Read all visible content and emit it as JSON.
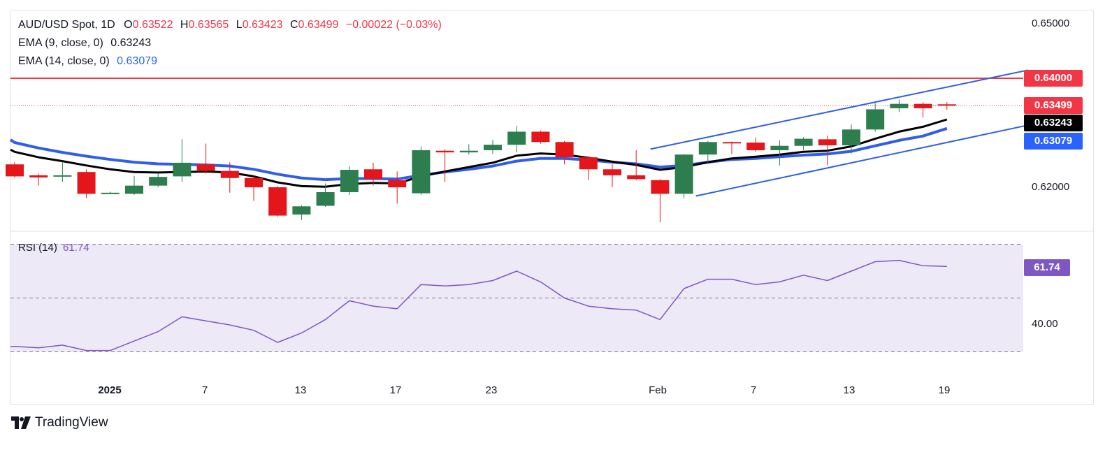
{
  "legend": {
    "symbol": "AUD/USD Spot, 1D",
    "open_label": "O",
    "open": "0.63522",
    "high_label": "H",
    "high": "0.63565",
    "low_label": "L",
    "low": "0.63423",
    "close_label": "C",
    "close": "0.63499",
    "change": "−0.00022 (−0.03%)",
    "ema9_label": "EMA (9, close, 0)",
    "ema9_value": "0.63243",
    "ema14_label": "EMA (14, close, 0)",
    "ema14_value": "0.63079"
  },
  "rsi_legend": {
    "label": "RSI (14)",
    "value": "61.74"
  },
  "price_axis": [
    "0.65000",
    "0.62000"
  ],
  "rsi_axis": [
    "40.00"
  ],
  "tags": {
    "resistance": "0.64000",
    "last_close": "0.63499",
    "ema9": "0.63243",
    "ema14": "0.63079",
    "rsi": "61.74"
  },
  "x_axis": [
    {
      "label": "2025",
      "bold": true
    },
    {
      "label": "7",
      "bold": false
    },
    {
      "label": "13",
      "bold": false
    },
    {
      "label": "17",
      "bold": false
    },
    {
      "label": "23",
      "bold": false
    },
    {
      "label": "Feb",
      "bold": false
    },
    {
      "label": "7",
      "bold": false
    },
    {
      "label": "13",
      "bold": false
    },
    {
      "label": "19",
      "bold": false
    }
  ],
  "logo": {
    "text": "TradingView"
  },
  "colors": {
    "up": "#2e7d4f",
    "down": "#e5161b",
    "ema9": "#000000",
    "ema14": "#2f5fe8",
    "channel": "#2f5fe8",
    "resistance": "#f23645",
    "rsi_line": "#7e57c2",
    "rsi_band": "#ede9f7"
  },
  "chart_data": {
    "type": "candlestick",
    "symbol": "AUD/USD",
    "timeframe": "1D",
    "ylim": [
      0.6135,
      0.6515
    ],
    "candles": [
      {
        "o": 0.6242,
        "h": 0.6246,
        "l": 0.6218,
        "c": 0.622
      },
      {
        "o": 0.6222,
        "h": 0.6225,
        "l": 0.6203,
        "c": 0.6218
      },
      {
        "o": 0.622,
        "h": 0.6247,
        "l": 0.621,
        "c": 0.6222
      },
      {
        "o": 0.6228,
        "h": 0.6233,
        "l": 0.618,
        "c": 0.6188
      },
      {
        "o": 0.619,
        "h": 0.6192,
        "l": 0.6188,
        "c": 0.619
      },
      {
        "o": 0.6188,
        "h": 0.6221,
        "l": 0.6186,
        "c": 0.6203
      },
      {
        "o": 0.6203,
        "h": 0.6225,
        "l": 0.62,
        "c": 0.6219
      },
      {
        "o": 0.622,
        "h": 0.6288,
        "l": 0.621,
        "c": 0.6245
      },
      {
        "o": 0.6242,
        "h": 0.628,
        "l": 0.6225,
        "c": 0.623
      },
      {
        "o": 0.623,
        "h": 0.6246,
        "l": 0.619,
        "c": 0.6217
      },
      {
        "o": 0.6217,
        "h": 0.6219,
        "l": 0.6175,
        "c": 0.62
      },
      {
        "o": 0.62,
        "h": 0.6202,
        "l": 0.6146,
        "c": 0.6148
      },
      {
        "o": 0.615,
        "h": 0.6167,
        "l": 0.614,
        "c": 0.6165
      },
      {
        "o": 0.6166,
        "h": 0.6207,
        "l": 0.6164,
        "c": 0.6191
      },
      {
        "o": 0.6191,
        "h": 0.6239,
        "l": 0.6186,
        "c": 0.6232
      },
      {
        "o": 0.6233,
        "h": 0.6245,
        "l": 0.6203,
        "c": 0.6215
      },
      {
        "o": 0.6213,
        "h": 0.6229,
        "l": 0.617,
        "c": 0.62
      },
      {
        "o": 0.6189,
        "h": 0.6275,
        "l": 0.6186,
        "c": 0.6268
      },
      {
        "o": 0.6267,
        "h": 0.627,
        "l": 0.621,
        "c": 0.6264
      },
      {
        "o": 0.6264,
        "h": 0.6279,
        "l": 0.626,
        "c": 0.6267
      },
      {
        "o": 0.6268,
        "h": 0.6287,
        "l": 0.6261,
        "c": 0.6278
      },
      {
        "o": 0.6278,
        "h": 0.6313,
        "l": 0.6264,
        "c": 0.6302
      },
      {
        "o": 0.6302,
        "h": 0.6304,
        "l": 0.628,
        "c": 0.6283
      },
      {
        "o": 0.6283,
        "h": 0.6285,
        "l": 0.6242,
        "c": 0.6255
      },
      {
        "o": 0.6255,
        "h": 0.6257,
        "l": 0.6213,
        "c": 0.6233
      },
      {
        "o": 0.6233,
        "h": 0.6242,
        "l": 0.62,
        "c": 0.6222
      },
      {
        "o": 0.6222,
        "h": 0.6268,
        "l": 0.6213,
        "c": 0.6215
      },
      {
        "o": 0.6213,
        "h": 0.6215,
        "l": 0.6136,
        "c": 0.6188
      },
      {
        "o": 0.6188,
        "h": 0.6261,
        "l": 0.618,
        "c": 0.626
      },
      {
        "o": 0.626,
        "h": 0.6285,
        "l": 0.6245,
        "c": 0.6283
      },
      {
        "o": 0.6283,
        "h": 0.6284,
        "l": 0.6261,
        "c": 0.6282
      },
      {
        "o": 0.6282,
        "h": 0.6291,
        "l": 0.6265,
        "c": 0.6268
      },
      {
        "o": 0.6268,
        "h": 0.6286,
        "l": 0.624,
        "c": 0.6276
      },
      {
        "o": 0.6276,
        "h": 0.6292,
        "l": 0.6268,
        "c": 0.6289
      },
      {
        "o": 0.6288,
        "h": 0.6295,
        "l": 0.624,
        "c": 0.6277
      },
      {
        "o": 0.6277,
        "h": 0.6315,
        "l": 0.6262,
        "c": 0.6306
      },
      {
        "o": 0.6306,
        "h": 0.6354,
        "l": 0.6302,
        "c": 0.6343
      },
      {
        "o": 0.6345,
        "h": 0.6361,
        "l": 0.6338,
        "c": 0.6353
      },
      {
        "o": 0.6353,
        "h": 0.6356,
        "l": 0.6328,
        "c": 0.6345
      },
      {
        "o": 0.63522,
        "h": 0.63565,
        "l": 0.63423,
        "c": 0.63499
      }
    ],
    "ema9": [
      0.6265,
      0.6255,
      0.6248,
      0.624,
      0.6233,
      0.6228,
      0.6227,
      0.6228,
      0.6229,
      0.6227,
      0.622,
      0.6209,
      0.6202,
      0.6201,
      0.6206,
      0.6208,
      0.6207,
      0.622,
      0.6229,
      0.6237,
      0.6245,
      0.6258,
      0.6262,
      0.626,
      0.6254,
      0.6247,
      0.6241,
      0.6232,
      0.6237,
      0.6246,
      0.6253,
      0.6256,
      0.626,
      0.6265,
      0.6267,
      0.6275,
      0.6289,
      0.6302,
      0.6311,
      0.63243
    ],
    "ema14": [
      0.6282,
      0.6272,
      0.6264,
      0.6257,
      0.6251,
      0.6246,
      0.6243,
      0.6242,
      0.6241,
      0.6239,
      0.6233,
      0.6224,
      0.6217,
      0.6214,
      0.6216,
      0.6216,
      0.6215,
      0.6222,
      0.6228,
      0.6233,
      0.6239,
      0.6248,
      0.6253,
      0.6253,
      0.625,
      0.6246,
      0.6243,
      0.6237,
      0.624,
      0.6246,
      0.6251,
      0.6253,
      0.6256,
      0.6259,
      0.6261,
      0.6266,
      0.6276,
      0.6286,
      0.6294,
      0.63079
    ],
    "resistance_level": 0.64,
    "channel_upper": [
      {
        "i": 26.6,
        "y": 0.627
      },
      {
        "i": 42.4,
        "y": 0.6415
      }
    ],
    "channel_lower": [
      {
        "i": 28.5,
        "y": 0.6184
      },
      {
        "i": 42.4,
        "y": 0.6314
      }
    ],
    "rsi": {
      "period": 14,
      "ylim": [
        24,
        80
      ],
      "levels": [
        30,
        50,
        70
      ],
      "values": [
        32,
        31.5,
        32.5,
        30.5,
        30.5,
        34,
        37.5,
        43,
        41.5,
        40,
        38,
        33.5,
        37,
        42,
        49,
        47,
        46,
        55,
        54.5,
        55,
        56.5,
        60,
        56,
        50,
        47,
        46,
        45.5,
        42,
        53.5,
        57,
        57,
        55,
        56,
        58.5,
        56.5,
        60,
        63.5,
        64,
        62,
        61.74
      ]
    }
  }
}
